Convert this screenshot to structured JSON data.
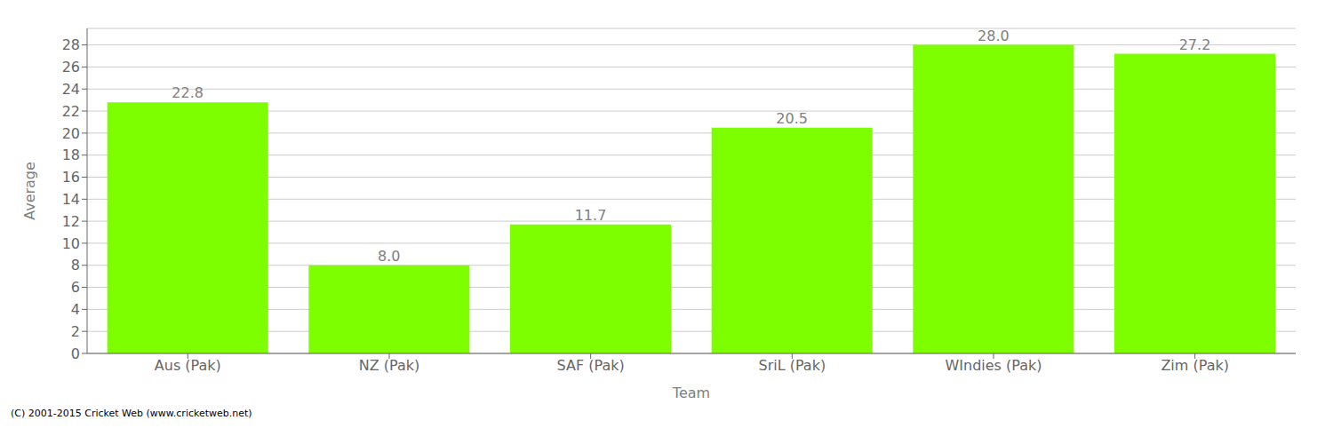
{
  "chart_data": {
    "type": "bar",
    "categories": [
      "Aus (Pak)",
      "NZ (Pak)",
      "SAF (Pak)",
      "SriL (Pak)",
      "WIndies (Pak)",
      "Zim (Pak)"
    ],
    "values": [
      22.8,
      8.0,
      11.7,
      20.5,
      28.0,
      27.2
    ],
    "value_labels": [
      "22.8",
      "8.0",
      "11.7",
      "20.5",
      "28.0",
      "27.2"
    ],
    "data_labels": true,
    "color": "#7dff00",
    "xlabel": "Team",
    "ylabel": "Average",
    "ylim": [
      0,
      29.5
    ],
    "yticks": [
      0,
      2,
      4,
      6,
      8,
      10,
      12,
      14,
      16,
      18,
      20,
      22,
      24,
      26,
      28
    ],
    "grid": true,
    "annotations": [
      "(C) 2001-2015 Cricket Web (www.cricketweb.net)"
    ]
  }
}
